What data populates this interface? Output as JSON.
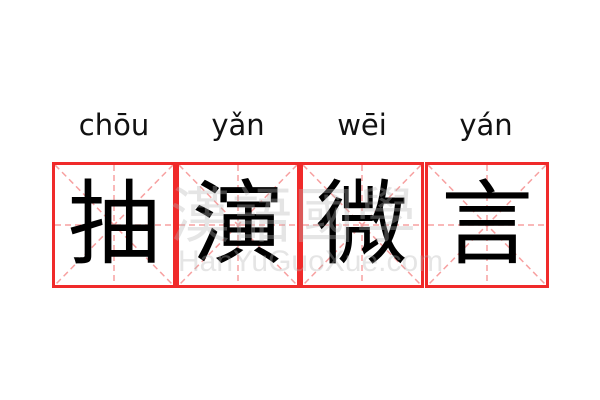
{
  "entries": [
    {
      "pinyin": "chōu",
      "character": "抽"
    },
    {
      "pinyin": "yǎn",
      "character": "演"
    },
    {
      "pinyin": "wēi",
      "character": "微"
    },
    {
      "pinyin": "yán",
      "character": "言"
    }
  ],
  "watermark": {
    "characters": "漢語國學",
    "text": "HanYuGuoXue.com"
  },
  "colors": {
    "grid_border": "#f02a2a",
    "guide_lines": "#f7a0a0",
    "text": "#000000"
  }
}
